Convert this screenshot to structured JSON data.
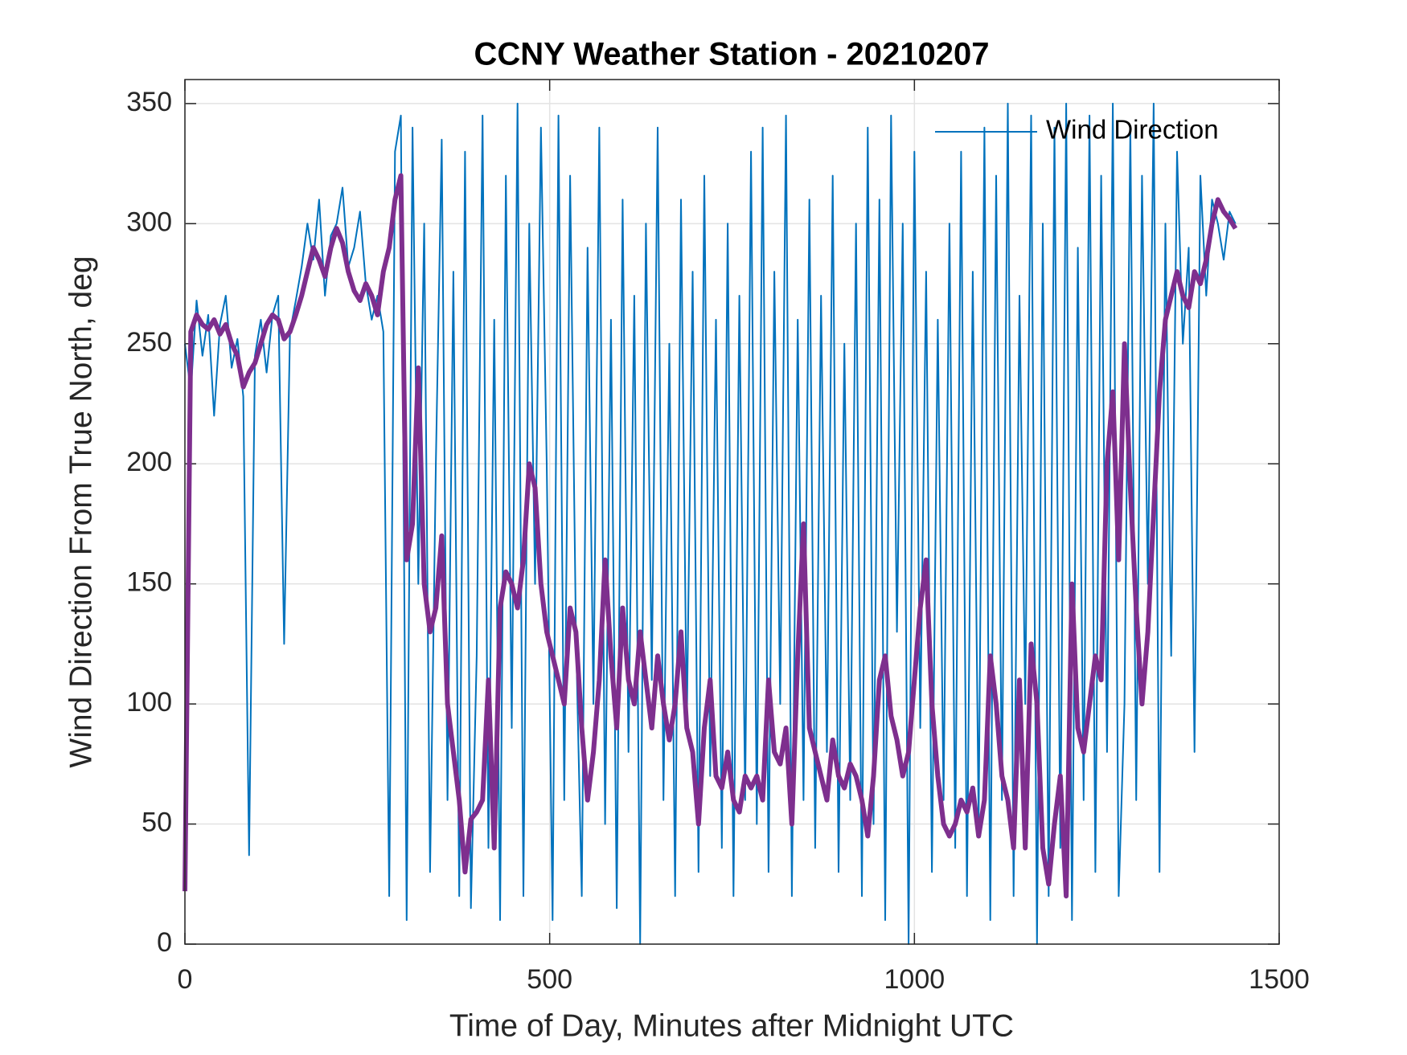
{
  "chart_data": {
    "type": "line",
    "title": "CCNY Weather Station - 20210207",
    "x_label": "Time of Day, Minutes after Midnight UTC",
    "y_label": "Wind Direction From True North, deg",
    "xlim": [
      0,
      1500
    ],
    "xticks": [
      0,
      500,
      1000,
      1500
    ],
    "ylim": [
      0,
      360
    ],
    "yticks": [
      0,
      50,
      100,
      150,
      200,
      250,
      300,
      350
    ],
    "grid": true,
    "legend": "upper right",
    "x": [
      0,
      8,
      16,
      24,
      32,
      40,
      48,
      56,
      64,
      72,
      80,
      88,
      96,
      104,
      112,
      120,
      128,
      136,
      144,
      152,
      160,
      168,
      176,
      184,
      192,
      200,
      208,
      216,
      224,
      232,
      240,
      248,
      256,
      264,
      272,
      280,
      288,
      296,
      304,
      312,
      320,
      328,
      336,
      344,
      352,
      360,
      368,
      376,
      384,
      392,
      400,
      408,
      416,
      424,
      432,
      440,
      448,
      456,
      464,
      472,
      480,
      488,
      496,
      504,
      512,
      520,
      528,
      536,
      544,
      552,
      560,
      568,
      576,
      584,
      592,
      600,
      608,
      616,
      624,
      632,
      640,
      648,
      656,
      664,
      672,
      680,
      688,
      696,
      704,
      712,
      720,
      728,
      736,
      744,
      752,
      760,
      768,
      776,
      784,
      792,
      800,
      808,
      816,
      824,
      832,
      840,
      848,
      856,
      864,
      872,
      880,
      888,
      896,
      904,
      912,
      920,
      928,
      936,
      944,
      952,
      960,
      968,
      976,
      984,
      992,
      1000,
      1008,
      1016,
      1024,
      1032,
      1040,
      1048,
      1056,
      1064,
      1072,
      1080,
      1088,
      1096,
      1104,
      1112,
      1120,
      1128,
      1136,
      1144,
      1152,
      1160,
      1168,
      1176,
      1184,
      1192,
      1200,
      1208,
      1216,
      1224,
      1232,
      1240,
      1248,
      1256,
      1264,
      1272,
      1280,
      1288,
      1296,
      1304,
      1312,
      1320,
      1328,
      1336,
      1344,
      1352,
      1360,
      1368,
      1376,
      1384,
      1392,
      1400,
      1408,
      1416,
      1424,
      1432,
      1440
    ],
    "series": [
      {
        "name": "Wind Direction",
        "color": "#0072BD",
        "width": 2,
        "values": [
          250,
          230,
          268,
          245,
          262,
          220,
          258,
          270,
          240,
          252,
          228,
          37,
          245,
          260,
          238,
          262,
          270,
          125,
          255,
          268,
          282,
          300,
          285,
          310,
          270,
          295,
          300,
          315,
          282,
          290,
          305,
          275,
          260,
          270,
          255,
          20,
          330,
          345,
          10,
          340,
          150,
          300,
          30,
          200,
          335,
          60,
          280,
          20,
          330,
          15,
          120,
          345,
          40,
          260,
          10,
          320,
          90,
          350,
          20,
          300,
          150,
          340,
          200,
          10,
          345,
          60,
          320,
          130,
          20,
          290,
          100,
          340,
          50,
          260,
          15,
          310,
          80,
          270,
          0,
          300,
          110,
          340,
          60,
          250,
          20,
          310,
          90,
          280,
          30,
          320,
          70,
          260,
          40,
          300,
          20,
          270,
          60,
          330,
          50,
          340,
          30,
          280,
          100,
          345,
          20,
          260,
          60,
          310,
          40,
          270,
          80,
          320,
          30,
          250,
          60,
          300,
          20,
          340,
          50,
          310,
          10,
          345,
          130,
          300,
          0,
          330,
          90,
          280,
          30,
          260,
          60,
          300,
          40,
          330,
          20,
          280,
          50,
          340,
          10,
          320,
          60,
          350,
          20,
          270,
          100,
          345,
          0,
          300,
          20,
          340,
          40,
          350,
          10,
          290,
          60,
          345,
          30,
          320,
          80,
          350,
          20,
          100,
          340,
          60,
          320,
          150,
          350,
          30,
          300,
          120,
          330,
          250,
          290,
          80,
          320,
          270,
          310,
          300,
          285,
          305,
          300
        ]
      },
      {
        "color": "#7E2F8E",
        "width": 6,
        "values": [
          22,
          255,
          262,
          258,
          256,
          260,
          254,
          258,
          250,
          245,
          232,
          238,
          242,
          250,
          258,
          262,
          260,
          252,
          255,
          262,
          270,
          280,
          290,
          285,
          278,
          290,
          298,
          292,
          280,
          272,
          268,
          275,
          270,
          262,
          280,
          290,
          310,
          320,
          160,
          175,
          240,
          150,
          130,
          140,
          170,
          100,
          80,
          60,
          30,
          52,
          55,
          60,
          110,
          40,
          140,
          155,
          150,
          140,
          160,
          200,
          190,
          150,
          130,
          120,
          110,
          100,
          140,
          130,
          90,
          60,
          80,
          110,
          160,
          120,
          90,
          140,
          110,
          100,
          130,
          110,
          90,
          120,
          100,
          85,
          100,
          130,
          90,
          80,
          50,
          90,
          110,
          70,
          65,
          80,
          60,
          55,
          70,
          65,
          70,
          60,
          110,
          80,
          75,
          90,
          50,
          120,
          175,
          90,
          80,
          70,
          60,
          85,
          70,
          65,
          75,
          70,
          60,
          45,
          70,
          110,
          120,
          95,
          85,
          70,
          80,
          110,
          140,
          160,
          100,
          70,
          50,
          45,
          50,
          60,
          55,
          65,
          45,
          60,
          120,
          100,
          70,
          60,
          40,
          110,
          40,
          125,
          100,
          40,
          25,
          50,
          70,
          20,
          150,
          90,
          80,
          100,
          120,
          110,
          200,
          230,
          160,
          250,
          190,
          140,
          100,
          130,
          180,
          230,
          260,
          270,
          280,
          270,
          265,
          280,
          275,
          285,
          300,
          310,
          305,
          302,
          298
        ]
      }
    ]
  }
}
